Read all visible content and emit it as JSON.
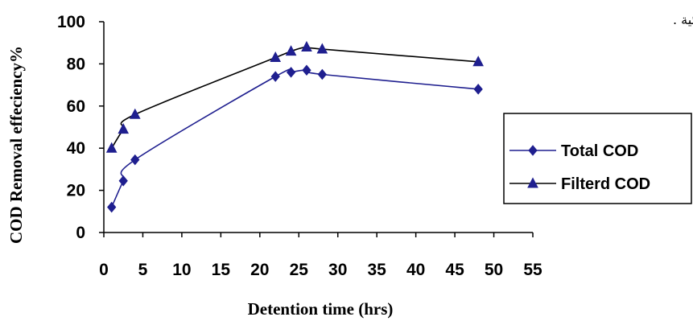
{
  "chart_data": {
    "type": "line",
    "xlabel": "Detention time (hrs)",
    "ylabel": "COD Removal effeciency%",
    "xlim": [
      0,
      55
    ],
    "ylim": [
      0,
      100
    ],
    "x_ticks": [
      "0",
      "5",
      "10",
      "15",
      "20",
      "25",
      "30",
      "35",
      "40",
      "45",
      "50",
      "55"
    ],
    "y_ticks": [
      "0",
      "20",
      "40",
      "60",
      "80",
      "100"
    ],
    "legend_position": "right",
    "grid": false,
    "series": [
      {
        "name": "Total COD",
        "marker": "diamond",
        "color": "#1f1f8f",
        "x": [
          1,
          2.5,
          4,
          22,
          24,
          26,
          28,
          48
        ],
        "y": [
          12,
          24.5,
          34.5,
          74,
          76,
          77,
          75,
          68
        ]
      },
      {
        "name": "Filterd COD",
        "marker": "triangle",
        "color": "#1f1f8f",
        "line_color": "#000000",
        "x": [
          1,
          2.5,
          4,
          22,
          24,
          26,
          28,
          48
        ],
        "y": [
          40,
          49,
          56,
          83,
          86,
          88,
          87,
          81
        ]
      }
    ]
  },
  "annotation_text": "الى الاجسام المائية ."
}
